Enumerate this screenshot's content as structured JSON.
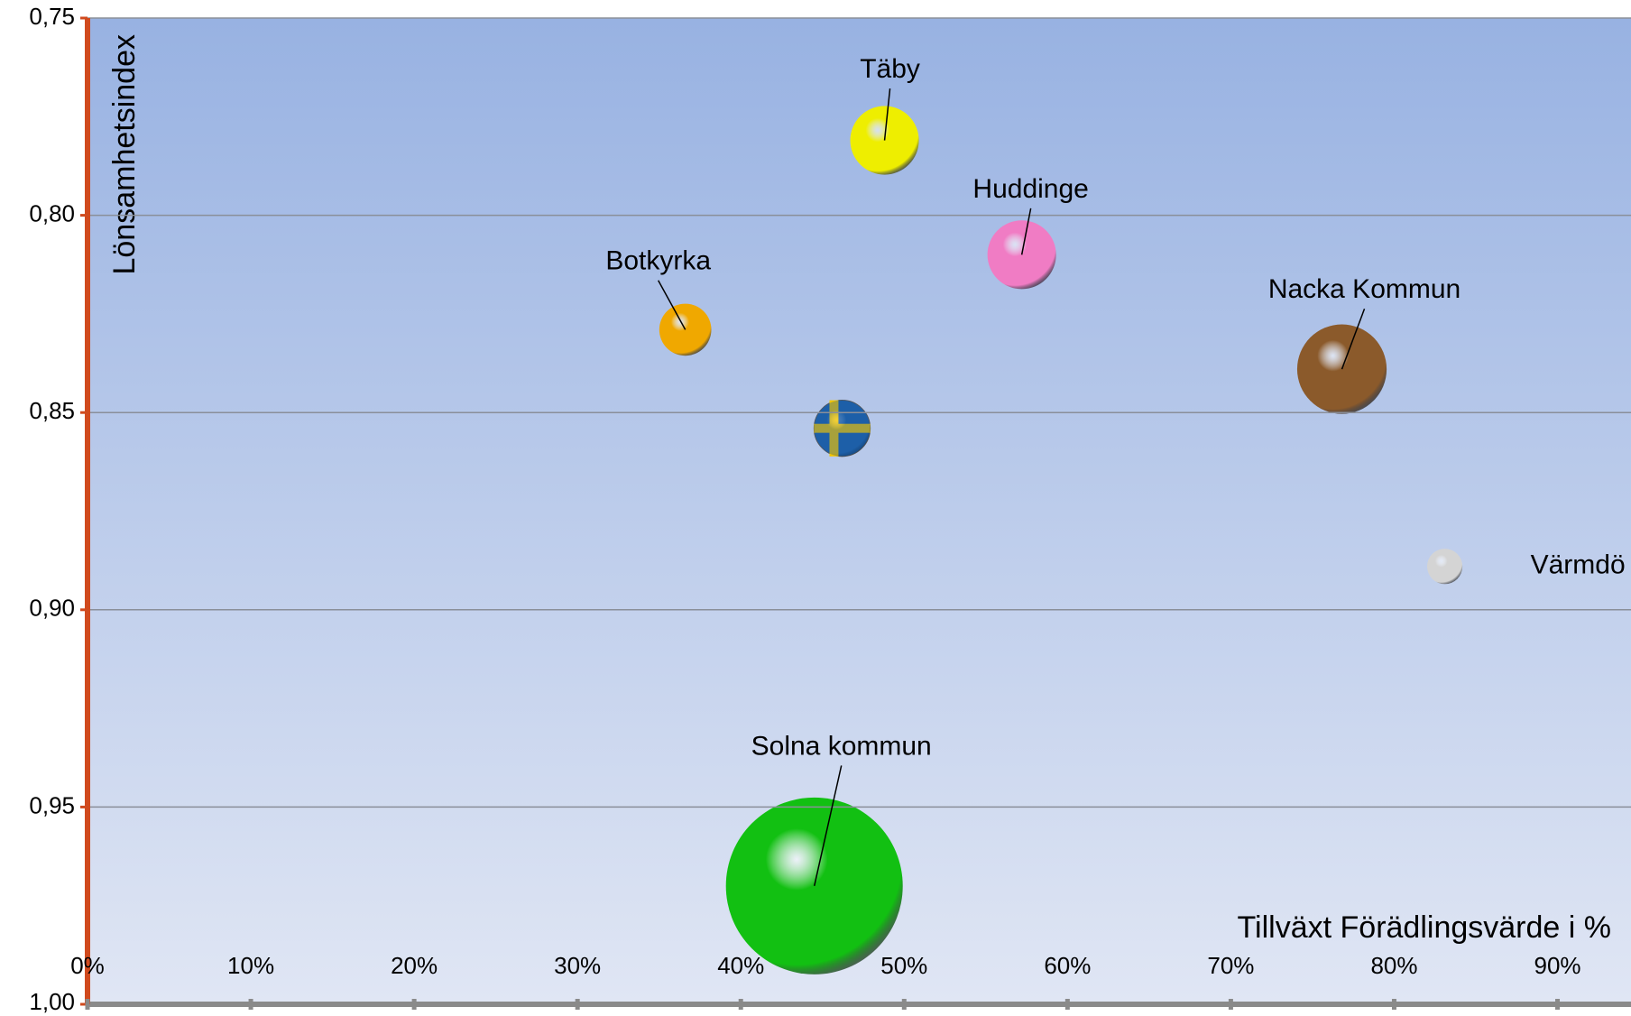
{
  "chart_data": {
    "type": "bubble",
    "x_label": "Tillväxt Förädlingsvärde i %",
    "y_label": "Lönsamhetsindex",
    "xlim": [
      0,
      94.5
    ],
    "xticks": [
      {
        "value": 0,
        "label": "0%"
      },
      {
        "value": 10,
        "label": "10%"
      },
      {
        "value": 20,
        "label": "20%"
      },
      {
        "value": 30,
        "label": "30%"
      },
      {
        "value": 40,
        "label": "40%"
      },
      {
        "value": 50,
        "label": "50%"
      },
      {
        "value": 60,
        "label": "60%"
      },
      {
        "value": 70,
        "label": "70%"
      },
      {
        "value": 80,
        "label": "80%"
      },
      {
        "value": 90,
        "label": "90%"
      }
    ],
    "ylim": [
      0.75,
      1.0
    ],
    "y_inverted": true,
    "yticks": [
      {
        "value": 0.75,
        "label": "0,75"
      },
      {
        "value": 0.8,
        "label": "0,80"
      },
      {
        "value": 0.85,
        "label": "0,85"
      },
      {
        "value": 0.9,
        "label": "0,90"
      },
      {
        "value": 0.95,
        "label": "0,95"
      },
      {
        "value": 1.0,
        "label": "1,00"
      }
    ],
    "grid": true,
    "points": [
      {
        "label": "Täby",
        "x": 48.8,
        "y": 0.781,
        "size": 33,
        "color": "#eeee00"
      },
      {
        "label": "Huddinge",
        "x": 57.2,
        "y": 0.81,
        "size": 33,
        "color": "#f07cc4"
      },
      {
        "label": "Botkyrka",
        "x": 36.6,
        "y": 0.829,
        "size": 25,
        "color": "#f0a800"
      },
      {
        "label": null,
        "x": 46.2,
        "y": 0.854,
        "size": 27,
        "color": "#1d5fa8"
      },
      {
        "label": "Nacka Kommun",
        "x": 76.8,
        "y": 0.839,
        "size": 43,
        "color": "#8b5a2b"
      },
      {
        "label": "Värmdö",
        "x": 83.1,
        "y": 0.889,
        "size": 17,
        "color": "#d4d4d4"
      },
      {
        "label": "Solna kommun",
        "x": 44.5,
        "y": 0.97,
        "size": 85,
        "color": "#12c012"
      }
    ]
  }
}
